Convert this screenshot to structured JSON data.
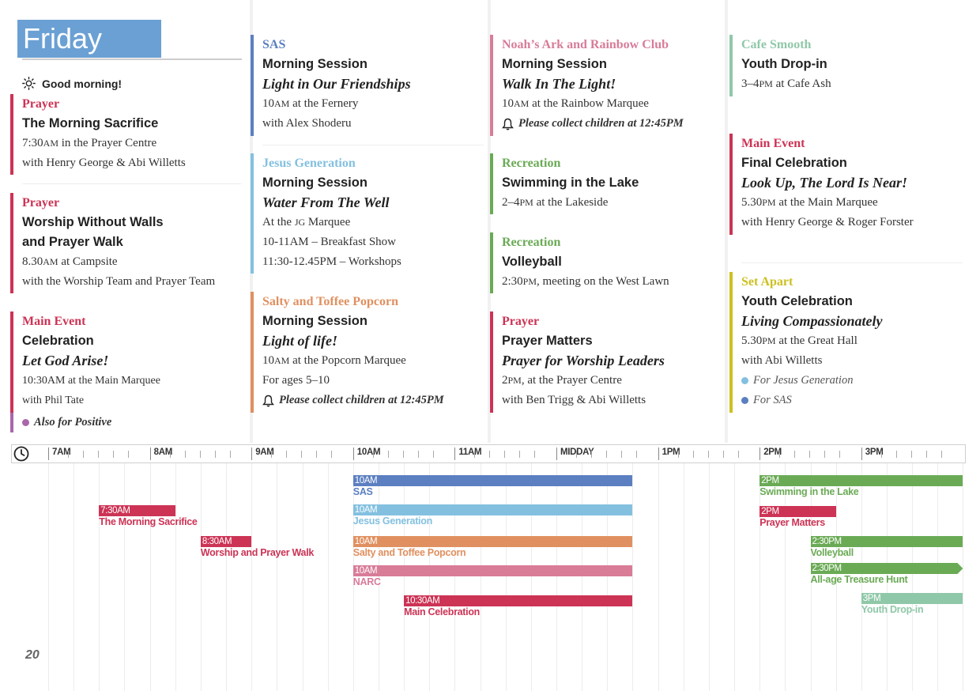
{
  "day": "Friday",
  "greeting": "Good morning!",
  "page_number": "20",
  "colors": {
    "prayer": "#cc3355",
    "main_event": "#cc3355",
    "sas": "#5b7fc1",
    "jesus_generation": "#83c0e0",
    "salty": "#e09060",
    "noahs_ark": "#d87c98",
    "recreation": "#6aaa55",
    "cafe": "#8fc8a8",
    "set_apart": "#ccc020",
    "positive": "#aa66aa"
  },
  "col1": {
    "b1": {
      "category": "Prayer",
      "session": "The Morning Sacrifice",
      "l1a": "7:30",
      "l1b": "AM",
      "l1c": " in the Prayer Centre",
      "l2": "with Henry George & Abi Willetts"
    },
    "b2": {
      "category": "Prayer",
      "session_1": "Worship Without Walls",
      "session_2": "and Prayer Walk",
      "l1a": "8.30",
      "l1b": "AM",
      "l1c": " at Campsite",
      "l2": "with the Worship Team and Prayer Team"
    },
    "b3": {
      "category": "Main Event",
      "session": "Celebration",
      "title": "Let God Arise!",
      "l1": "10:30AM at the Main Marquee",
      "l2": "with Phil Tate",
      "note": "Also for Positive"
    }
  },
  "col2": {
    "b1": {
      "category": "SAS",
      "session": "Morning Session",
      "title": "Light in Our Friendships",
      "l1a": "10",
      "l1b": "AM",
      "l1c": " at the Fernery",
      "l2": "with Alex Shoderu"
    },
    "b2": {
      "category": "Jesus Generation",
      "session": "Morning Session",
      "title": "Water From The Well",
      "l1a": "At the ",
      "l1b": "JG",
      "l1c": " Marquee",
      "l2": "10-11AM – Breakfast Show",
      "l3": "11:30-12.45PM – Workshops"
    },
    "b3": {
      "category": "Salty and Toffee Popcorn",
      "session": "Morning Session",
      "title": "Light of life!",
      "l1a": "10",
      "l1b": "AM",
      "l1c": " at the Popcorn Marquee",
      "l2": "For ages 5–10",
      "note": "Please collect children at 12:45PM"
    }
  },
  "col3": {
    "b1": {
      "category": "Noah’s Ark and Rainbow Club",
      "session": "Morning Session",
      "title": "Walk In The Light!",
      "l1a": "10",
      "l1b": "AM",
      "l1c": " at the Rainbow Marquee",
      "note": "Please collect children at 12:45PM"
    },
    "b2": {
      "category": "Recreation",
      "session": "Swimming in the Lake",
      "l1a": "2–4",
      "l1b": "PM",
      "l1c": " at the Lakeside"
    },
    "b3": {
      "category": "Recreation",
      "session": "Volleyball",
      "l1a": "2:30",
      "l1b": "PM",
      "l1c": ", meeting on the West Lawn"
    },
    "b4": {
      "category": "Prayer",
      "session": "Prayer Matters",
      "title": "Prayer for Worship Leaders",
      "l1a": "2",
      "l1b": "PM",
      "l1c": ", at the Prayer Centre",
      "l2": "with Ben Trigg & Abi Willetts"
    }
  },
  "col4": {
    "b1": {
      "category": "Cafe Smooth",
      "session": "Youth Drop-in",
      "l1a": "3–4",
      "l1b": "PM",
      "l1c": " at Cafe Ash"
    },
    "b2": {
      "category": "Main Event",
      "session": "Final Celebration",
      "title": "Look Up, The Lord Is Near!",
      "l1a": "5.30",
      "l1b": "PM",
      "l1c": " at the Main Marquee",
      "l2": "with Henry George & Roger Forster"
    },
    "b3": {
      "category": "Set Apart",
      "session": "Youth Celebration",
      "title": "Living Compassionately",
      "l1a": "5.30",
      "l1b": "PM",
      "l1c": " at the Great Hall",
      "l2": "with Abi Willetts",
      "note1": "For Jesus Generation",
      "note2": "For SAS"
    }
  },
  "timeline": {
    "hours": [
      "7AM",
      "8AM",
      "9AM",
      "10AM",
      "11AM",
      "MIDDAY",
      "1PM",
      "2PM",
      "3PM"
    ],
    "events": [
      {
        "time": "7:30AM",
        "label": "The Morning Sacrifice",
        "start_hour": 7.5,
        "end_hour": 8.25,
        "color": "#cc3355"
      },
      {
        "time": "8:30AM",
        "label": "Worship and Prayer Walk",
        "start_hour": 8.5,
        "end_hour": 9.0,
        "color": "#cc3355"
      },
      {
        "time": "10AM",
        "label": "SAS",
        "start_hour": 10.0,
        "end_hour": 12.75,
        "color": "#5b7fc1"
      },
      {
        "time": "10AM",
        "label": "Jesus Generation",
        "start_hour": 10.0,
        "end_hour": 12.75,
        "color": "#83c0e0"
      },
      {
        "time": "10AM",
        "label": "Salty and Toffee Popcorn",
        "start_hour": 10.0,
        "end_hour": 12.75,
        "color": "#e09060"
      },
      {
        "time": "10AM",
        "label": "NARC",
        "start_hour": 10.0,
        "end_hour": 12.75,
        "color": "#d87c98"
      },
      {
        "time": "10:30AM",
        "label": "Main Celebration",
        "start_hour": 10.5,
        "end_hour": 12.75,
        "color": "#cc3355"
      },
      {
        "time": "2PM",
        "label": "Swimming in the Lake",
        "start_hour": 14.0,
        "end_hour": 16.0,
        "color": "#6aaa55"
      },
      {
        "time": "2PM",
        "label": "Prayer Matters",
        "start_hour": 14.0,
        "end_hour": 14.75,
        "color": "#cc3355"
      },
      {
        "time": "2:30PM",
        "label": "Volleyball",
        "start_hour": 14.5,
        "end_hour": 16.0,
        "color": "#6aaa55"
      },
      {
        "time": "2:30PM",
        "label": "All-age Treasure Hunt",
        "start_hour": 14.5,
        "end_hour": 16.0,
        "color": "#6aaa55",
        "arrow": true
      },
      {
        "time": "3PM",
        "label": "Youth Drop-in",
        "start_hour": 15.0,
        "end_hour": 16.0,
        "color": "#8fc8a8"
      }
    ]
  }
}
